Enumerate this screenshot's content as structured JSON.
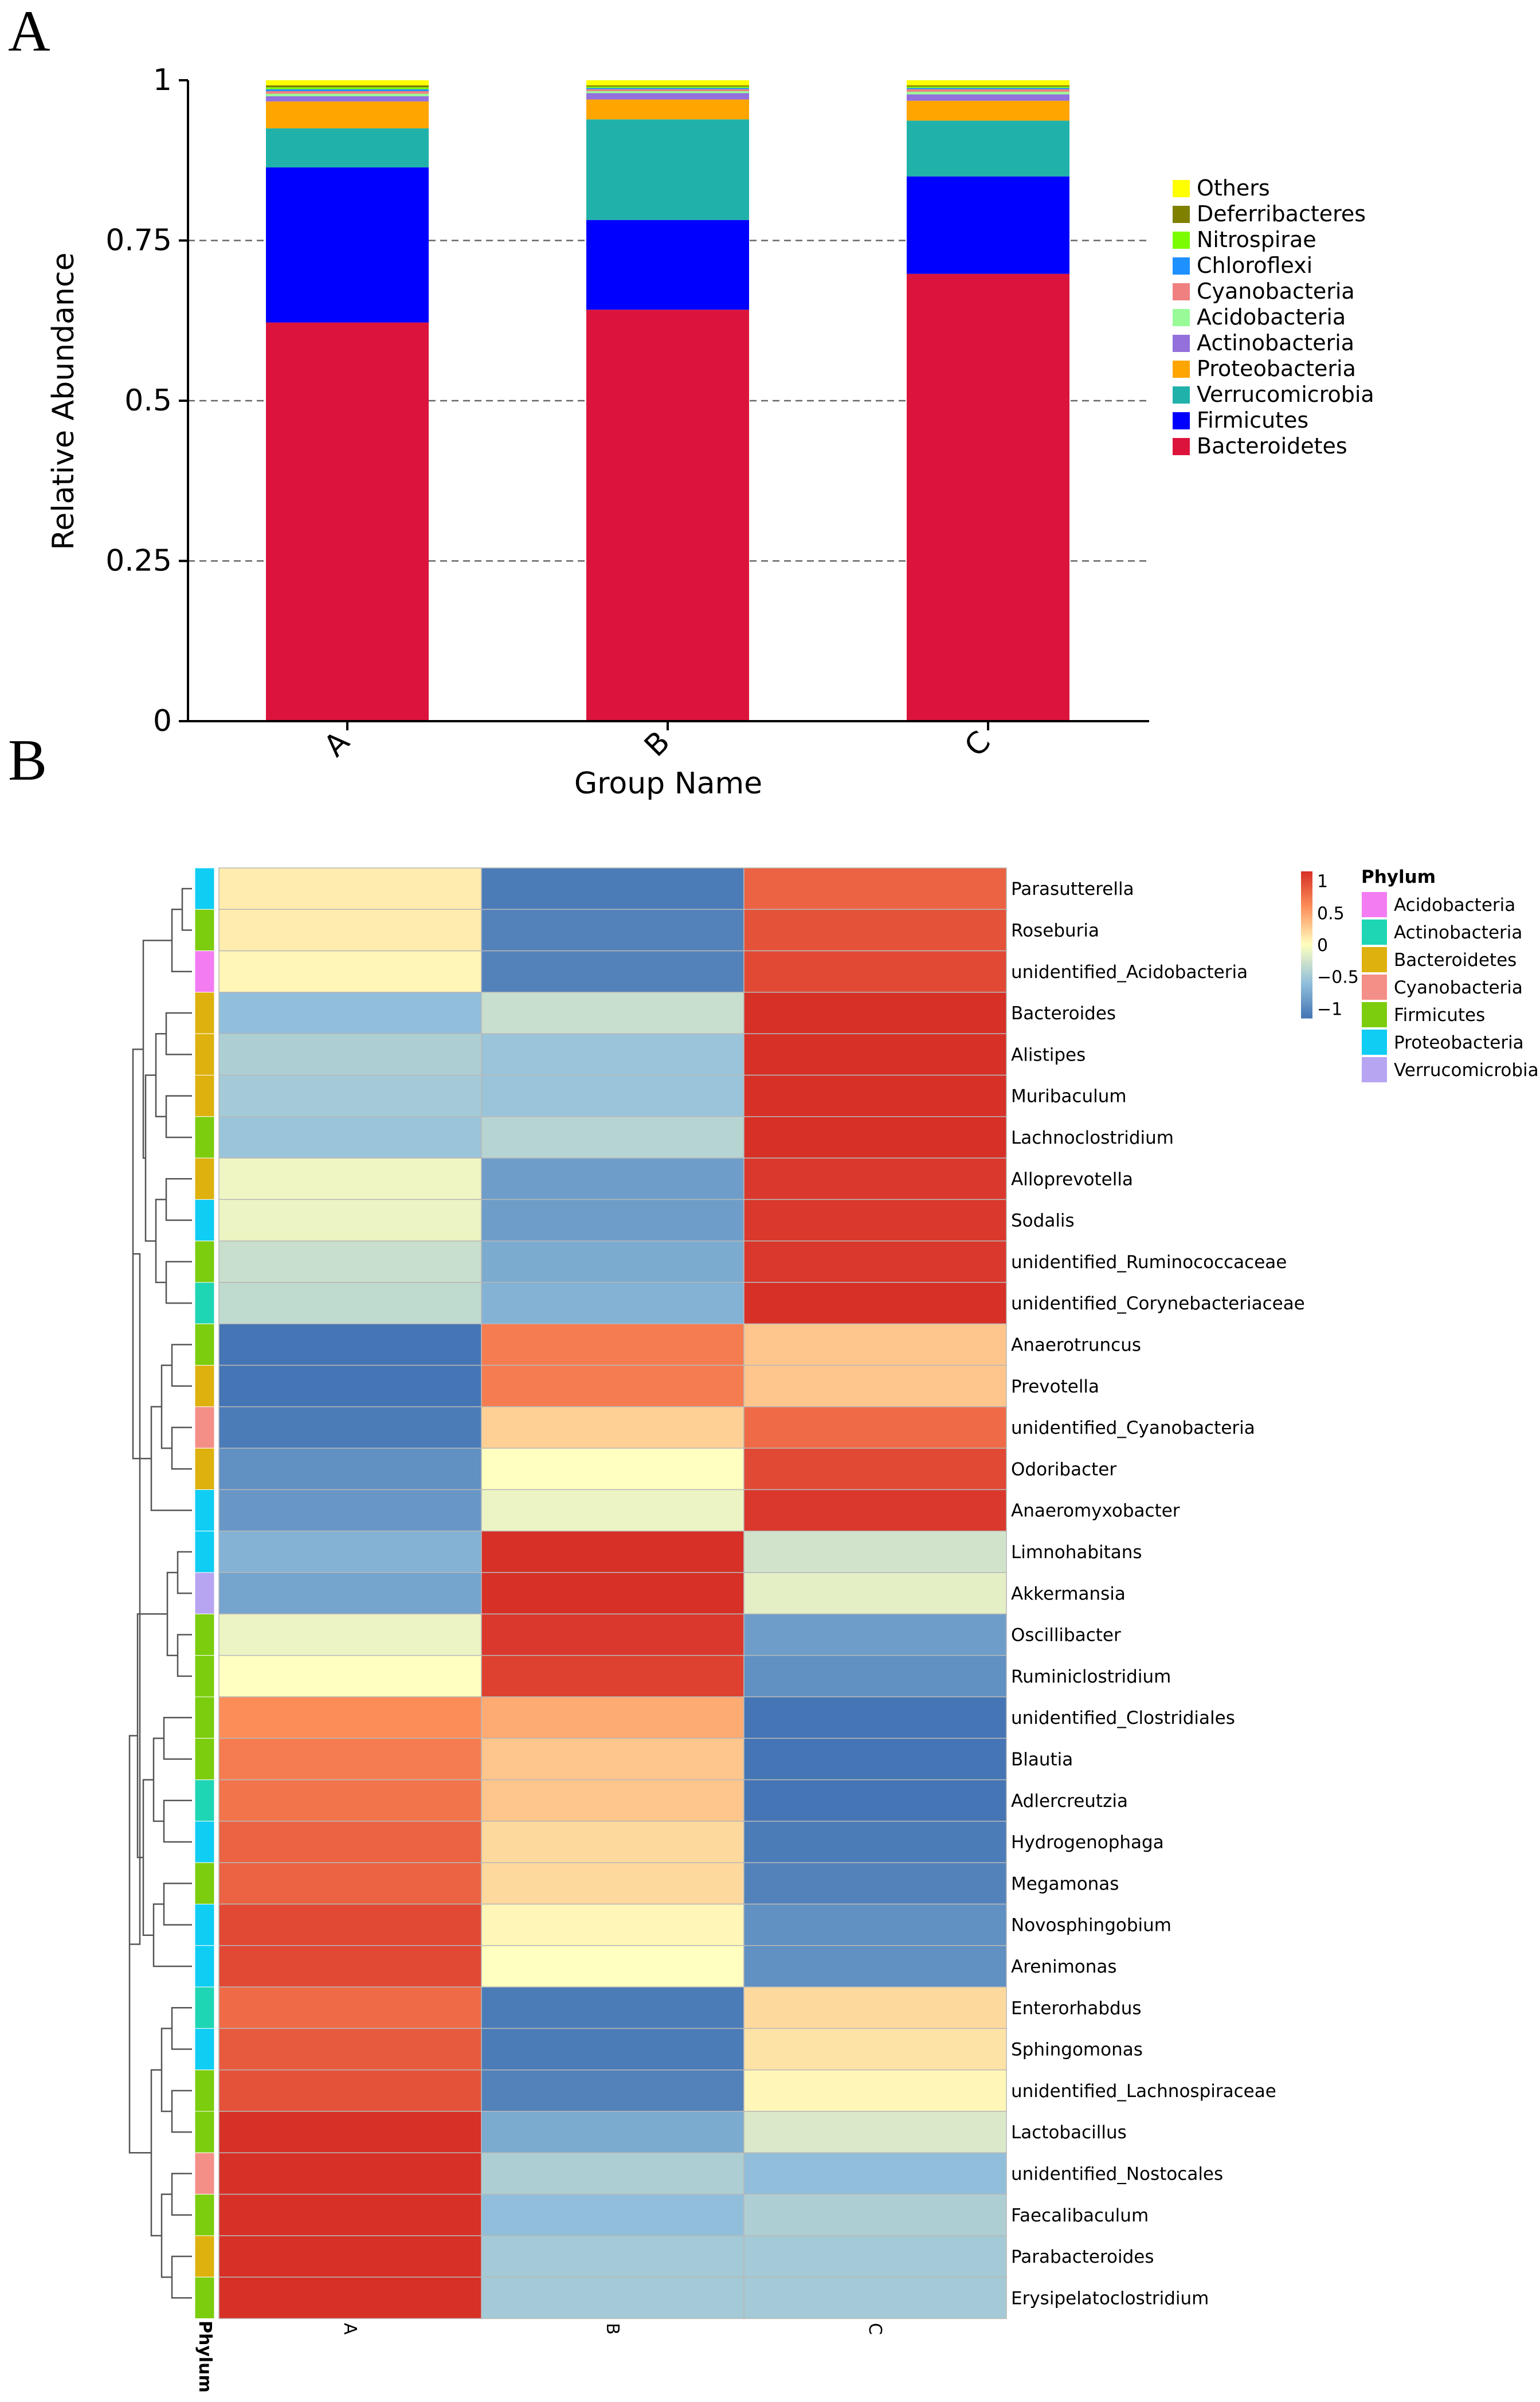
{
  "panels": {
    "a": "A",
    "b": "B"
  },
  "chart_data": [
    {
      "type": "bar",
      "stacked": true,
      "title": "",
      "xlabel": "Group Name",
      "ylabel": "Relative Abundance",
      "ylim": [
        0,
        1
      ],
      "yticks": [
        "0",
        "0.25",
        "0.5",
        "0.75",
        "1"
      ],
      "categories": [
        "A",
        "B",
        "C"
      ],
      "legend_position": "right",
      "series": [
        {
          "name": "Bacteroidetes",
          "color": "#dc143c",
          "values": [
            0.622,
            0.642,
            0.698
          ]
        },
        {
          "name": "Firmicutes",
          "color": "#0000ff",
          "values": [
            0.242,
            0.14,
            0.152
          ]
        },
        {
          "name": "Verrucomicrobia",
          "color": "#20b2aa",
          "values": [
            0.061,
            0.157,
            0.087
          ]
        },
        {
          "name": "Proteobacteria",
          "color": "#ffa500",
          "values": [
            0.042,
            0.031,
            0.031
          ]
        },
        {
          "name": "Actinobacteria",
          "color": "#9370db",
          "values": [
            0.008,
            0.01,
            0.01
          ]
        },
        {
          "name": "Acidobacteria",
          "color": "#98fb98",
          "values": [
            0.004,
            0.003,
            0.004
          ]
        },
        {
          "name": "Cyanobacteria",
          "color": "#f08080",
          "values": [
            0.004,
            0.003,
            0.004
          ]
        },
        {
          "name": "Chloroflexi",
          "color": "#1e90ff",
          "values": [
            0.003,
            0.002,
            0.002
          ]
        },
        {
          "name": "Nitrospirae",
          "color": "#7cfc00",
          "values": [
            0.003,
            0.002,
            0.002
          ]
        },
        {
          "name": "Deferribacteres",
          "color": "#808000",
          "values": [
            0.003,
            0.002,
            0.002
          ]
        },
        {
          "name": "Others",
          "color": "#ffff00",
          "values": [
            0.008,
            0.008,
            0.008
          ]
        }
      ]
    },
    {
      "type": "heatmap",
      "xlabels": [
        "A",
        "B",
        "C"
      ],
      "phylum_axis_label": "Phylum",
      "colorbar": {
        "ticks": [
          "1",
          "0.5",
          "0",
          "−0.5",
          "−1"
        ],
        "range": [
          -1.15,
          1.15
        ]
      },
      "phylum_legend": {
        "title": "Phylum",
        "items": [
          {
            "name": "Acidobacteria",
            "color": "#f37cf2"
          },
          {
            "name": "Actinobacteria",
            "color": "#1fd6b4"
          },
          {
            "name": "Bacteroidetes",
            "color": "#deb10e"
          },
          {
            "name": "Cyanobacteria",
            "color": "#f48f87"
          },
          {
            "name": "Firmicutes",
            "color": "#7ccd0e"
          },
          {
            "name": "Proteobacteria",
            "color": "#10cdf4"
          },
          {
            "name": "Verrucomicrobia",
            "color": "#b8a5f2"
          }
        ]
      },
      "rows": [
        {
          "genus": "Parasutterella",
          "phylum": "Proteobacteria",
          "values": [
            0.1,
            -1.1,
            0.85
          ]
        },
        {
          "genus": "Roseburia",
          "phylum": "Firmicutes",
          "values": [
            0.1,
            -1.05,
            0.95
          ]
        },
        {
          "genus": "unidentified_Acidobacteria",
          "phylum": "Acidobacteria",
          "values": [
            0.05,
            -1.05,
            1.0
          ]
        },
        {
          "genus": "Bacteroides",
          "phylum": "Bacteroidetes",
          "values": [
            -0.6,
            -0.3,
            1.15
          ]
        },
        {
          "genus": "Alistipes",
          "phylum": "Bacteroidetes",
          "values": [
            -0.45,
            -0.55,
            1.15
          ]
        },
        {
          "genus": "Muribaculum",
          "phylum": "Bacteroidetes",
          "values": [
            -0.5,
            -0.55,
            1.15
          ]
        },
        {
          "genus": "Lachnoclostridium",
          "phylum": "Firmicutes",
          "values": [
            -0.55,
            -0.4,
            1.15
          ]
        },
        {
          "genus": "Alloprevotella",
          "phylum": "Bacteroidetes",
          "values": [
            -0.08,
            -0.85,
            1.1
          ]
        },
        {
          "genus": "Sodalis",
          "phylum": "Proteobacteria",
          "values": [
            -0.1,
            -0.85,
            1.1
          ]
        },
        {
          "genus": "unidentified_Ruminococcaceae",
          "phylum": "Firmicutes",
          "values": [
            -0.3,
            -0.75,
            1.1
          ]
        },
        {
          "genus": "unidentified_Corynebacteriaceae",
          "phylum": "Actinobacteria",
          "values": [
            -0.35,
            -0.7,
            1.15
          ]
        },
        {
          "genus": "Anaerotruncus",
          "phylum": "Firmicutes",
          "values": [
            -1.15,
            0.7,
            0.3
          ]
        },
        {
          "genus": "Prevotella",
          "phylum": "Bacteroidetes",
          "values": [
            -1.15,
            0.7,
            0.3
          ]
        },
        {
          "genus": "unidentified_Cyanobacteria",
          "phylum": "Cyanobacteria",
          "values": [
            -1.1,
            0.25,
            0.8
          ]
        },
        {
          "genus": "Odoribacter",
          "phylum": "Bacteroidetes",
          "values": [
            -0.95,
            0.0,
            1.0
          ]
        },
        {
          "genus": "Anaeromyxobacter",
          "phylum": "Proteobacteria",
          "values": [
            -0.9,
            -0.1,
            1.1
          ]
        },
        {
          "genus": "Limnohabitans",
          "phylum": "Proteobacteria",
          "values": [
            -0.7,
            1.15,
            -0.25
          ]
        },
        {
          "genus": "Akkermansia",
          "phylum": "Verrucomicrobia",
          "values": [
            -0.8,
            1.15,
            -0.15
          ]
        },
        {
          "genus": "Oscillibacter",
          "phylum": "Firmicutes",
          "values": [
            -0.1,
            1.1,
            -0.85
          ]
        },
        {
          "genus": "Ruminiclostridium",
          "phylum": "Firmicutes",
          "values": [
            0.0,
            1.05,
            -0.95
          ]
        },
        {
          "genus": "unidentified_Clostridiales",
          "phylum": "Firmicutes",
          "values": [
            0.6,
            0.45,
            -1.15
          ]
        },
        {
          "genus": "Blautia",
          "phylum": "Firmicutes",
          "values": [
            0.7,
            0.3,
            -1.15
          ]
        },
        {
          "genus": "Adlercreutzia",
          "phylum": "Actinobacteria",
          "values": [
            0.75,
            0.3,
            -1.15
          ]
        },
        {
          "genus": "Hydrogenophaga",
          "phylum": "Proteobacteria",
          "values": [
            0.85,
            0.2,
            -1.1
          ]
        },
        {
          "genus": "Megamonas",
          "phylum": "Firmicutes",
          "values": [
            0.85,
            0.2,
            -1.05
          ]
        },
        {
          "genus": "Novosphingobium",
          "phylum": "Proteobacteria",
          "values": [
            1.0,
            0.05,
            -0.95
          ]
        },
        {
          "genus": "Arenimonas",
          "phylum": "Proteobacteria",
          "values": [
            1.0,
            0.0,
            -0.95
          ]
        },
        {
          "genus": "Enterorhabdus",
          "phylum": "Actinobacteria",
          "values": [
            0.8,
            -1.1,
            0.2
          ]
        },
        {
          "genus": "Sphingomonas",
          "phylum": "Proteobacteria",
          "values": [
            0.9,
            -1.1,
            0.15
          ]
        },
        {
          "genus": "unidentified_Lachnospiraceae",
          "phylum": "Firmicutes",
          "values": [
            0.95,
            -1.05,
            0.05
          ]
        },
        {
          "genus": "Lactobacillus",
          "phylum": "Firmicutes",
          "values": [
            1.15,
            -0.75,
            -0.2
          ]
        },
        {
          "genus": "unidentified_Nostocales",
          "phylum": "Cyanobacteria",
          "values": [
            1.15,
            -0.45,
            -0.6
          ]
        },
        {
          "genus": "Faecalibaculum",
          "phylum": "Firmicutes",
          "values": [
            1.15,
            -0.6,
            -0.45
          ]
        },
        {
          "genus": "Parabacteroides",
          "phylum": "Bacteroidetes",
          "values": [
            1.15,
            -0.5,
            -0.5
          ]
        },
        {
          "genus": "Erysipelatoclostridium",
          "phylum": "Firmicutes",
          "values": [
            1.15,
            -0.5,
            -0.5
          ]
        }
      ]
    }
  ]
}
